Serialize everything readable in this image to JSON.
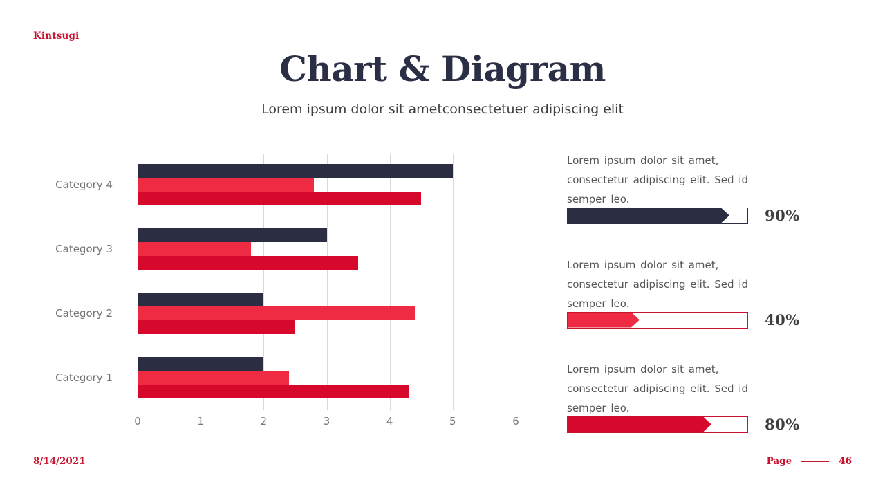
{
  "logo": {
    "text": "Kintsugi"
  },
  "header": {
    "title": "Chart & Diagram",
    "subtitle": "Lorem ipsum dolor sit ametconsectetuer adipiscing elit"
  },
  "colors": {
    "navy": "#2b2e43",
    "bright_red": "#ef2b44",
    "dark_red": "#d6082b",
    "accent_text_red": "#c9132e",
    "gridline": "#d9d9d9",
    "label_gray": "#757575",
    "body_gray": "#555555"
  },
  "chart_data": {
    "type": "bar",
    "orientation": "horizontal",
    "title": "",
    "xlabel": "",
    "ylabel": "",
    "categories": [
      "Category 4",
      "Category 3",
      "Category 2",
      "Category 1"
    ],
    "series": [
      {
        "name": "series-navy",
        "color": "#2b2e43",
        "values": [
          5.0,
          3.0,
          2.0,
          2.0
        ]
      },
      {
        "name": "series-bright-red",
        "color": "#ef2b44",
        "values": [
          2.8,
          1.8,
          4.4,
          2.4
        ]
      },
      {
        "name": "series-dark-red",
        "color": "#d6082b",
        "values": [
          4.5,
          3.5,
          2.5,
          4.3
        ]
      }
    ],
    "xlim": [
      0,
      6
    ],
    "xticks": [
      0,
      1,
      2,
      3,
      4,
      5,
      6
    ],
    "grid": "vertical-only",
    "legend": "none"
  },
  "stats": [
    {
      "text": "Lorem ipsum dolor sit amet, consectetur adipiscing elit. Sed id semper leo.",
      "percent": 90,
      "label": "90%",
      "fill_color": "#2b2e43",
      "border_color": "#2b2e43"
    },
    {
      "text": "Lorem ipsum dolor sit amet, consectetur adipiscing elit. Sed id semper leo.",
      "percent": 40,
      "label": "40%",
      "fill_color": "#ef2b44",
      "border_color": "#c9132e"
    },
    {
      "text": "Lorem ipsum dolor sit amet, consectetur adipiscing elit. Sed id semper leo.",
      "percent": 80,
      "label": "80%",
      "fill_color": "#d6082b",
      "border_color": "#c9132e"
    }
  ],
  "footer": {
    "date": "8/14/2021",
    "page_label": "Page",
    "page_number": "46"
  }
}
